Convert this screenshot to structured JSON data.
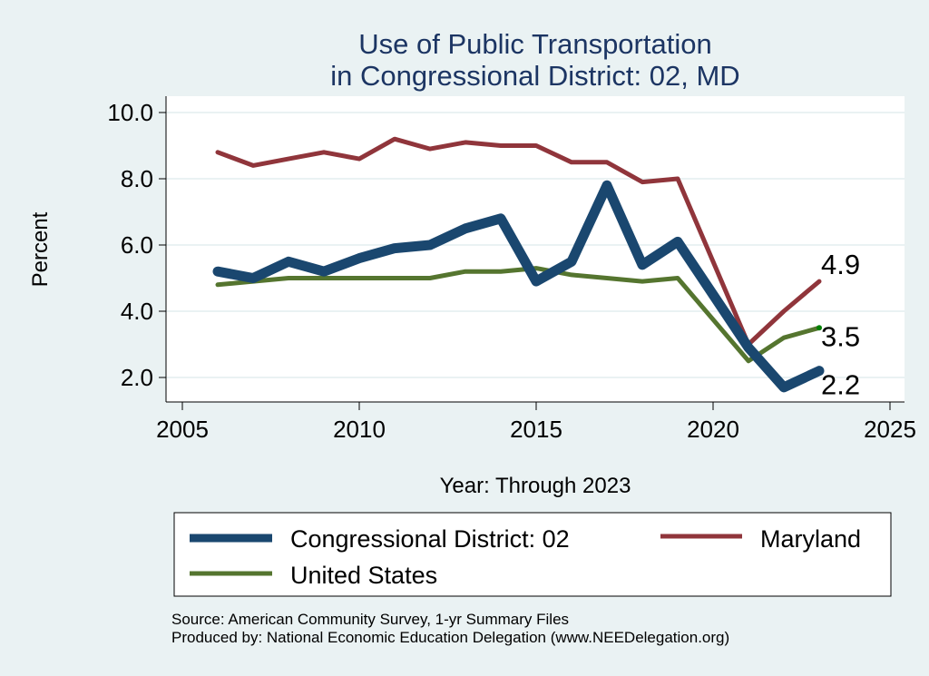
{
  "chart_data": {
    "type": "line",
    "title": "Use of Public Transportation",
    "subtitle": "in Congressional District: 02, MD",
    "xlabel": "Year: Through 2023",
    "ylabel": "Percent",
    "xlim": [
      2005,
      2025
    ],
    "ylim": [
      1.3,
      10.5
    ],
    "xticks": [
      2005,
      2010,
      2015,
      2020,
      2025
    ],
    "xtick_labels": [
      "2005",
      "2010",
      "2015",
      "2020",
      "2025"
    ],
    "yticks": [
      2,
      4,
      6,
      8,
      10
    ],
    "ytick_labels": [
      "2.0",
      "4.0",
      "6.0",
      "8.0",
      "10.0"
    ],
    "grid": "horizontal",
    "legend_position": "bottom",
    "x": [
      2006,
      2007,
      2008,
      2009,
      2010,
      2011,
      2012,
      2013,
      2014,
      2015,
      2016,
      2017,
      2018,
      2019,
      2021,
      2022,
      2023
    ],
    "series": [
      {
        "name": "Congressional District: 02",
        "color": "#1a476f",
        "values": [
          5.2,
          5.0,
          5.5,
          5.2,
          5.6,
          5.9,
          6.0,
          6.5,
          6.8,
          4.9,
          5.5,
          7.8,
          5.4,
          6.1,
          2.9,
          1.7,
          2.2
        ],
        "end_label": "2.2"
      },
      {
        "name": "Maryland",
        "color": "#90353b",
        "values": [
          8.8,
          8.4,
          8.6,
          8.8,
          8.6,
          9.2,
          8.9,
          9.1,
          9.0,
          9.0,
          8.5,
          8.5,
          7.9,
          8.0,
          3.0,
          4.0,
          4.9
        ],
        "end_label": "4.9"
      },
      {
        "name": "United States",
        "color": "#55752f",
        "values": [
          4.8,
          4.9,
          5.0,
          5.0,
          5.0,
          5.0,
          5.0,
          5.2,
          5.2,
          5.3,
          5.1,
          5.0,
          4.9,
          5.0,
          2.5,
          3.2,
          3.5
        ],
        "end_label": "3.5",
        "end_marker_color": "#008000"
      }
    ],
    "notes": [
      "Source: American Community Survey, 1-yr Summary Files",
      "Produced by: National Economic Education Delegation (www.NEEDelegation.org)"
    ]
  }
}
